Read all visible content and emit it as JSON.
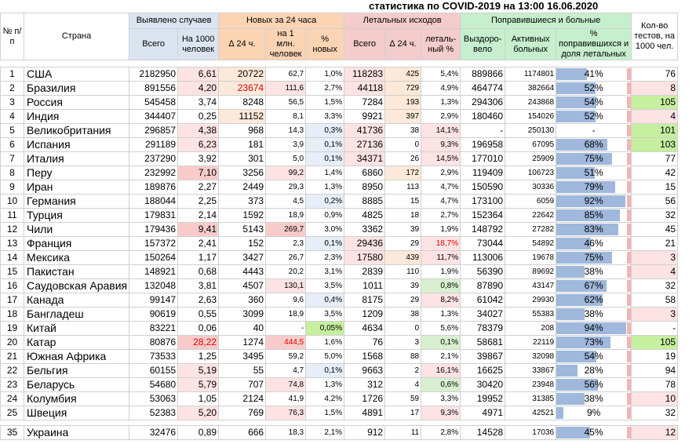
{
  "title": "статистика по COVID-2019 на 13:00 16.06.2020",
  "headers": {
    "num": "№ п/п",
    "country": "Страна",
    "detected": "Выявлено случаев",
    "detected_total": "Всего",
    "detected_per1000": "На 1000 человек",
    "new24": "Новых за 24 часа",
    "new_delta": "∆ 24 ч.",
    "new_per1m": "на 1 млн. человек",
    "new_pct": "% новых",
    "deaths": "Летальных исходов",
    "deaths_total": "Всего",
    "deaths_delta": "∆ 24 ч.",
    "deaths_pct": "леталь-ный %",
    "recovered": "Поправившиеся и больные",
    "recovered_total": "Выздоро-вело",
    "active": "Активных больных",
    "rec_share": "% поправившихся и доля летальных",
    "tests": "Кол-во тестов, на 1000 чел."
  },
  "rows": [
    {
      "n": "1",
      "country": "США",
      "total": "2182950",
      "per1000": "6,61",
      "new": "20722",
      "new1m": "62,7",
      "newpct": "1,0%",
      "deaths": "118283",
      "d24": "425",
      "dpct": "5,4%",
      "rec": "889866",
      "active": "1174801",
      "recpct": "41%",
      "recfrac": 0.41,
      "tests": "76"
    },
    {
      "n": "2",
      "country": "Бразилия",
      "total": "891556",
      "per1000": "4,20",
      "new": "23674",
      "new1m": "111,6",
      "newpct": "2,7%",
      "deaths": "44118",
      "d24": "729",
      "dpct": "4,9%",
      "rec": "464774",
      "active": "382664",
      "recpct": "52%",
      "recfrac": 0.52,
      "tests": "8"
    },
    {
      "n": "3",
      "country": "Россия",
      "total": "545458",
      "per1000": "3,74",
      "new": "8248",
      "new1m": "56,5",
      "newpct": "1,5%",
      "deaths": "7284",
      "d24": "193",
      "dpct": "1,3%",
      "rec": "294306",
      "active": "243868",
      "recpct": "54%",
      "recfrac": 0.54,
      "tests": "105"
    },
    {
      "n": "4",
      "country": "Индия",
      "total": "344407",
      "per1000": "0,25",
      "new": "11152",
      "new1m": "8,1",
      "newpct": "3,3%",
      "deaths": "9921",
      "d24": "397",
      "dpct": "2,9%",
      "rec": "180460",
      "active": "154026",
      "recpct": "52%",
      "recfrac": 0.52,
      "tests": "4"
    },
    {
      "n": "5",
      "country": "Великобритания",
      "total": "296857",
      "per1000": "4,38",
      "new": "968",
      "new1m": "14,3",
      "newpct": "0,3%",
      "deaths": "41736",
      "d24": "38",
      "dpct": "14,1%",
      "rec": "-",
      "active": "250130",
      "recpct": "-",
      "recfrac": 0,
      "tests": "101"
    },
    {
      "n": "6",
      "country": "Испания",
      "total": "291189",
      "per1000": "6,23",
      "new": "181",
      "new1m": "3,9",
      "newpct": "0,1%",
      "deaths": "27136",
      "d24": "0",
      "dpct": "9,3%",
      "rec": "196958",
      "active": "67095",
      "recpct": "68%",
      "recfrac": 0.68,
      "tests": "103"
    },
    {
      "n": "7",
      "country": "Италия",
      "total": "237290",
      "per1000": "3,92",
      "new": "301",
      "new1m": "5,0",
      "newpct": "0,1%",
      "deaths": "34371",
      "d24": "26",
      "dpct": "14,5%",
      "rec": "177010",
      "active": "25909",
      "recpct": "75%",
      "recfrac": 0.75,
      "tests": "77"
    },
    {
      "n": "8",
      "country": "Перу",
      "total": "232992",
      "per1000": "7,10",
      "new": "3256",
      "new1m": "99,2",
      "newpct": "1,4%",
      "deaths": "6860",
      "d24": "172",
      "dpct": "2,9%",
      "rec": "119409",
      "active": "106723",
      "recpct": "51%",
      "recfrac": 0.51,
      "tests": "42"
    },
    {
      "n": "9",
      "country": "Иран",
      "total": "189876",
      "per1000": "2,27",
      "new": "2449",
      "new1m": "29,3",
      "newpct": "1,3%",
      "deaths": "8950",
      "d24": "113",
      "dpct": "4,7%",
      "rec": "150590",
      "active": "30336",
      "recpct": "79%",
      "recfrac": 0.79,
      "tests": "15"
    },
    {
      "n": "10",
      "country": "Германия",
      "total": "188044",
      "per1000": "2,25",
      "new": "373",
      "new1m": "4,5",
      "newpct": "0,2%",
      "deaths": "8885",
      "d24": "15",
      "dpct": "4,7%",
      "rec": "173100",
      "active": "6059",
      "recpct": "92%",
      "recfrac": 0.92,
      "tests": "56"
    },
    {
      "n": "11",
      "country": "Турция",
      "total": "179831",
      "per1000": "2,14",
      "new": "1592",
      "new1m": "18,9",
      "newpct": "0,9%",
      "deaths": "4825",
      "d24": "18",
      "dpct": "2,7%",
      "rec": "152364",
      "active": "22642",
      "recpct": "85%",
      "recfrac": 0.85,
      "tests": "32"
    },
    {
      "n": "12",
      "country": "Чили",
      "total": "179436",
      "per1000": "9,41",
      "new": "5143",
      "new1m": "269,7",
      "newpct": "3,0%",
      "deaths": "3362",
      "d24": "39",
      "dpct": "1,9%",
      "rec": "148792",
      "active": "27282",
      "recpct": "83%",
      "recfrac": 0.83,
      "tests": "45"
    },
    {
      "n": "13",
      "country": "Франция",
      "total": "157372",
      "per1000": "2,41",
      "new": "152",
      "new1m": "2,3",
      "newpct": "0,1%",
      "deaths": "29436",
      "d24": "29",
      "dpct": "18,7%",
      "rec": "73044",
      "active": "54892",
      "recpct": "46%",
      "recfrac": 0.46,
      "tests": "21"
    },
    {
      "n": "14",
      "country": "Мексика",
      "total": "150264",
      "per1000": "1,17",
      "new": "3427",
      "new1m": "26,7",
      "newpct": "2,3%",
      "deaths": "17580",
      "d24": "439",
      "dpct": "11,7%",
      "rec": "113006",
      "active": "19678",
      "recpct": "75%",
      "recfrac": 0.75,
      "tests": "3"
    },
    {
      "n": "15",
      "country": "Пакистан",
      "total": "148921",
      "per1000": "0,68",
      "new": "4443",
      "new1m": "20,2",
      "newpct": "3,1%",
      "deaths": "2839",
      "d24": "110",
      "dpct": "1,9%",
      "rec": "56390",
      "active": "89692",
      "recpct": "38%",
      "recfrac": 0.38,
      "tests": "4"
    },
    {
      "n": "16",
      "country": "Саудовская Аравия",
      "total": "132048",
      "per1000": "3,81",
      "new": "4507",
      "new1m": "130,1",
      "newpct": "3,5%",
      "deaths": "1011",
      "d24": "39",
      "dpct": "0,8%",
      "rec": "87890",
      "active": "43147",
      "recpct": "67%",
      "recfrac": 0.67,
      "tests": "32"
    },
    {
      "n": "17",
      "country": "Канада",
      "total": "99147",
      "per1000": "2,63",
      "new": "360",
      "new1m": "9,6",
      "newpct": "0,4%",
      "deaths": "8175",
      "d24": "29",
      "dpct": "8,2%",
      "rec": "61042",
      "active": "29930",
      "recpct": "62%",
      "recfrac": 0.62,
      "tests": "58"
    },
    {
      "n": "18",
      "country": "Бангладеш",
      "total": "90619",
      "per1000": "0,55",
      "new": "3099",
      "new1m": "18,9",
      "newpct": "3,5%",
      "deaths": "1209",
      "d24": "38",
      "dpct": "1,3%",
      "rec": "34027",
      "active": "55383",
      "recpct": "38%",
      "recfrac": 0.38,
      "tests": "3"
    },
    {
      "n": "19",
      "country": "Китай",
      "total": "83221",
      "per1000": "0,06",
      "new": "40",
      "new1m": "-",
      "newpct": "0,05%",
      "deaths": "4634",
      "d24": "0",
      "dpct": "5,6%",
      "rec": "78379",
      "active": "208",
      "recpct": "94%",
      "recfrac": 0.94,
      "tests": "-"
    },
    {
      "n": "20",
      "country": "Катар",
      "total": "80876",
      "per1000": "28,22",
      "new": "1274",
      "new1m": "444,5",
      "newpct": "1,6%",
      "deaths": "76",
      "d24": "3",
      "dpct": "0,1%",
      "rec": "58681",
      "active": "22119",
      "recpct": "73%",
      "recfrac": 0.73,
      "tests": "105"
    },
    {
      "n": "21",
      "country": "Южная Африка",
      "total": "73533",
      "per1000": "1,25",
      "new": "3495",
      "new1m": "59,2",
      "newpct": "5,0%",
      "deaths": "1568",
      "d24": "88",
      "dpct": "2,1%",
      "rec": "39867",
      "active": "32098",
      "recpct": "54%",
      "recfrac": 0.54,
      "tests": "19"
    },
    {
      "n": "22",
      "country": "Бельгия",
      "total": "60155",
      "per1000": "5,19",
      "new": "55",
      "new1m": "4,7",
      "newpct": "0,1%",
      "deaths": "9663",
      "d24": "2",
      "dpct": "16,1%",
      "rec": "16625",
      "active": "33867",
      "recpct": "28%",
      "recfrac": 0.28,
      "tests": "94"
    },
    {
      "n": "23",
      "country": "Беларусь",
      "total": "54680",
      "per1000": "5,79",
      "new": "707",
      "new1m": "74,8",
      "newpct": "1,3%",
      "deaths": "312",
      "d24": "4",
      "dpct": "0,6%",
      "rec": "30420",
      "active": "23948",
      "recpct": "56%",
      "recfrac": 0.56,
      "tests": "78"
    },
    {
      "n": "24",
      "country": "Колумбия",
      "total": "53063",
      "per1000": "1,05",
      "new": "2124",
      "new1m": "41,9",
      "newpct": "4,2%",
      "deaths": "1726",
      "d24": "59",
      "dpct": "3,3%",
      "rec": "19952",
      "active": "31385",
      "recpct": "38%",
      "recfrac": 0.38,
      "tests": "10"
    },
    {
      "n": "25",
      "country": "Швеция",
      "total": "52383",
      "per1000": "5,20",
      "new": "769",
      "new1m": "76,3",
      "newpct": "1,5%",
      "deaths": "4891",
      "d24": "17",
      "dpct": "9,3%",
      "rec": "4971",
      "active": "42521",
      "recpct": "9%",
      "recfrac": 0.09,
      "tests": "32"
    }
  ],
  "ukraine": {
    "n": "35",
    "country": "Украина",
    "total": "32476",
    "per1000": "0,89",
    "new": "666",
    "new1m": "18,3",
    "newpct": "2,1%",
    "deaths": "912",
    "d24": "11",
    "dpct": "2,8%",
    "rec": "14528",
    "active": "17036",
    "recpct": "45%",
    "recfrac": 0.45,
    "tests": "12"
  }
}
